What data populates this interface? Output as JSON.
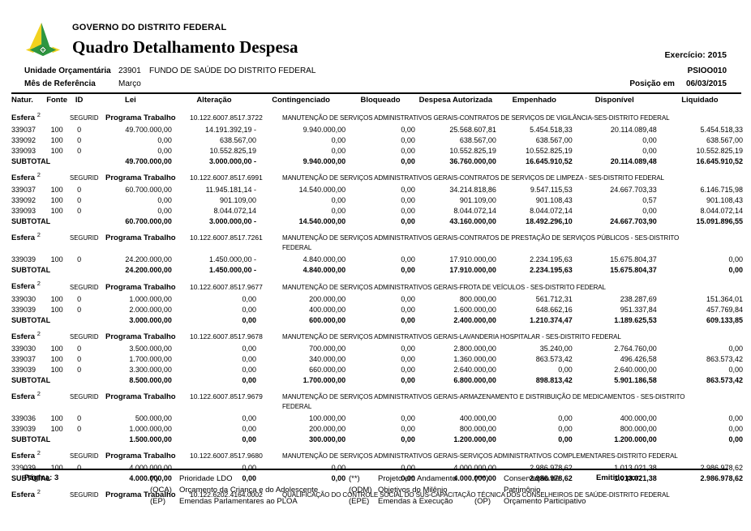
{
  "header": {
    "org": "GOVERNO DO DISTRITO FEDERAL",
    "title": "Quadro Detalhamento Despesa",
    "exercicio": "Exercício: 2015",
    "report_code": "PSIOO010",
    "posicao_label": "Posição em",
    "posicao_date": "06/03/2015",
    "unidade_label": "Unidade Orçamentária",
    "unidade_code": "23901",
    "unidade_name": "FUNDO DE SAÚDE DO DISTRITO FEDERAL",
    "mes_label": "Mês de Referência",
    "mes_value": "Março"
  },
  "table": {
    "columns": [
      "Natur.",
      "Fonte",
      "ID",
      "Lei",
      "Alteração",
      "Contingenciado",
      "Bloqueado",
      "Despesa Autorizada",
      "Empenhado",
      "Disponível",
      "Liquidado"
    ],
    "esfera": {
      "label": "Esfera",
      "value": "2",
      "regime": "SEGURID",
      "pt_label": "Programa Trabalho"
    },
    "subtotal_label": "SUBTOTAL",
    "sections": [
      {
        "pt_code": "10.122.6007.8517.3722",
        "desc": "MANUTENÇÃO DE SERVIÇOS ADMINISTRATIVOS GERAIS-CONTRATOS DE SERVIÇOS DE VIGILÂNCIA-SES-DISTRITO FEDERAL",
        "rows": [
          [
            "339037",
            "100",
            "0",
            "49.700.000,00",
            "14.191.392,19 -",
            "9.940.000,00",
            "0,00",
            "25.568.607,81",
            "5.454.518,33",
            "20.114.089,48",
            "5.454.518,33"
          ],
          [
            "339092",
            "100",
            "0",
            "0,00",
            "638.567,00",
            "0,00",
            "0,00",
            "638.567,00",
            "638.567,00",
            "0,00",
            "638.567,00"
          ],
          [
            "339093",
            "100",
            "0",
            "0,00",
            "10.552.825,19",
            "0,00",
            "0,00",
            "10.552.825,19",
            "10.552.825,19",
            "0,00",
            "10.552.825,19"
          ]
        ],
        "subtotal": [
          "49.700.000,00",
          "3.000.000,00 -",
          "9.940.000,00",
          "0,00",
          "36.760.000,00",
          "16.645.910,52",
          "20.114.089,48",
          "16.645.910,52"
        ]
      },
      {
        "pt_code": "10.122.6007.8517.6991",
        "desc": "MANUTENÇÃO DE SERVIÇOS ADMINISTRATIVOS GERAIS-CONTRATOS DE SERVIÇOS DE LIMPEZA - SES-DISTRITO FEDERAL",
        "rows": [
          [
            "339037",
            "100",
            "0",
            "60.700.000,00",
            "11.945.181,14 -",
            "14.540.000,00",
            "0,00",
            "34.214.818,86",
            "9.547.115,53",
            "24.667.703,33",
            "6.146.715,98"
          ],
          [
            "339092",
            "100",
            "0",
            "0,00",
            "901.109,00",
            "0,00",
            "0,00",
            "901.109,00",
            "901.108,43",
            "0,57",
            "901.108,43"
          ],
          [
            "339093",
            "100",
            "0",
            "0,00",
            "8.044.072,14",
            "0,00",
            "0,00",
            "8.044.072,14",
            "8.044.072,14",
            "0,00",
            "8.044.072,14"
          ]
        ],
        "subtotal": [
          "60.700.000,00",
          "3.000.000,00 -",
          "14.540.000,00",
          "0,00",
          "43.160.000,00",
          "18.492.296,10",
          "24.667.703,90",
          "15.091.896,55"
        ]
      },
      {
        "pt_code": "10.122.6007.8517.7261",
        "desc": "MANUTENÇÃO DE SERVIÇOS ADMINISTRATIVOS GERAIS-CONTRATOS DE PRESTAÇÃO DE SERVIÇOS PÚBLICOS - SES-DISTRITO",
        "desc2": "FEDERAL",
        "rows": [
          [
            "339039",
            "100",
            "0",
            "24.200.000,00",
            "1.450.000,00 -",
            "4.840.000,00",
            "0,00",
            "17.910.000,00",
            "2.234.195,63",
            "15.675.804,37",
            "0,00"
          ]
        ],
        "subtotal": [
          "24.200.000,00",
          "1.450.000,00 -",
          "4.840.000,00",
          "0,00",
          "17.910.000,00",
          "2.234.195,63",
          "15.675.804,37",
          "0,00"
        ]
      },
      {
        "pt_code": "10.122.6007.8517.9677",
        "desc": "MANUTENÇÃO DE SERVIÇOS ADMINISTRATIVOS GERAIS-FROTA DE VEÍCULOS - SES-DISTRITO FEDERAL",
        "rows": [
          [
            "339030",
            "100",
            "0",
            "1.000.000,00",
            "0,00",
            "200.000,00",
            "0,00",
            "800.000,00",
            "561.712,31",
            "238.287,69",
            "151.364,01"
          ],
          [
            "339039",
            "100",
            "0",
            "2.000.000,00",
            "0,00",
            "400.000,00",
            "0,00",
            "1.600.000,00",
            "648.662,16",
            "951.337,84",
            "457.769,84"
          ]
        ],
        "subtotal": [
          "3.000.000,00",
          "0,00",
          "600.000,00",
          "0,00",
          "2.400.000,00",
          "1.210.374,47",
          "1.189.625,53",
          "609.133,85"
        ]
      },
      {
        "pt_code": "10.122.6007.8517.9678",
        "desc": "MANUTENÇÃO DE SERVIÇOS ADMINISTRATIVOS GERAIS-LAVANDERIA HOSPITALAR - SES-DISTRITO FEDERAL",
        "rows": [
          [
            "339030",
            "100",
            "0",
            "3.500.000,00",
            "0,00",
            "700.000,00",
            "0,00",
            "2.800.000,00",
            "35.240,00",
            "2.764.760,00",
            "0,00"
          ],
          [
            "339037",
            "100",
            "0",
            "1.700.000,00",
            "0,00",
            "340.000,00",
            "0,00",
            "1.360.000,00",
            "863.573,42",
            "496.426,58",
            "863.573,42"
          ],
          [
            "339039",
            "100",
            "0",
            "3.300.000,00",
            "0,00",
            "660.000,00",
            "0,00",
            "2.640.000,00",
            "0,00",
            "2.640.000,00",
            "0,00"
          ]
        ],
        "subtotal": [
          "8.500.000,00",
          "0,00",
          "1.700.000,00",
          "0,00",
          "6.800.000,00",
          "898.813,42",
          "5.901.186,58",
          "863.573,42"
        ]
      },
      {
        "pt_code": "10.122.6007.8517.9679",
        "desc": "MANUTENÇÃO DE SERVIÇOS ADMINISTRATIVOS GERAIS-ARMAZENAMENTO E DISTRIBUIÇÃO DE MEDICAMENTOS - SES-DISTRITO",
        "desc2": "FEDERAL",
        "rows": [
          [
            "339036",
            "100",
            "0",
            "500.000,00",
            "0,00",
            "100.000,00",
            "0,00",
            "400.000,00",
            "0,00",
            "400.000,00",
            "0,00"
          ],
          [
            "339039",
            "100",
            "0",
            "1.000.000,00",
            "0,00",
            "200.000,00",
            "0,00",
            "800.000,00",
            "0,00",
            "800.000,00",
            "0,00"
          ]
        ],
        "subtotal": [
          "1.500.000,00",
          "0,00",
          "300.000,00",
          "0,00",
          "1.200.000,00",
          "0,00",
          "1.200.000,00",
          "0,00"
        ]
      },
      {
        "pt_code": "10.122.6007.8517.9680",
        "desc": "MANUTENÇÃO DE SERVIÇOS ADMINISTRATIVOS GERAIS-SERVIÇOS ADMINISTRATIVOS COMPLEMENTARES-DISTRITO FEDERAL",
        "rows": [
          [
            "339039",
            "100",
            "0",
            "4.000.000,00",
            "0,00",
            "0,00",
            "0,00",
            "4.000.000,00",
            "2.986.978,62",
            "1.013.021,38",
            "2.986.978,62"
          ]
        ],
        "subtotal": [
          "4.000.000,00",
          "0,00",
          "0,00",
          "0,00",
          "4.000.000,00",
          "2.986.978,62",
          "1.013.021,38",
          "2.986.978,62"
        ]
      },
      {
        "pt_code": "10.122.6202.4164.0002",
        "desc": "QUALIFICAÇÃO DO CONTROLE SOCIAL DO SUS-CAPACITAÇÃO TÉCNICA DOS CONSELHEIROS DE SAÚDE-DISTRITO FEDERAL",
        "rows": [],
        "subtotal": null
      }
    ]
  },
  "footer": {
    "page_label": "Página:",
    "page_number": "3",
    "legend_col1": [
      [
        "(*)",
        "Prioridade LDO"
      ],
      [
        "(OCA)",
        "Orçamento da Criança e do Adolescente"
      ],
      [
        "(EP)",
        "Emendas Parlamentares ao PLOA"
      ]
    ],
    "legend_col2": [
      [
        "(**)",
        "Projeto em Andamento"
      ],
      [
        "(ODM)",
        "Objetivos do Milênio"
      ],
      [
        "(EPE)",
        "Emendas à Execução"
      ]
    ],
    "legend_col3": [
      [
        "(***)",
        "Conservação de Patrimônio"
      ],
      [
        "(OP)",
        "Orçamento Participativo"
      ]
    ],
    "emitido_label": "Emitido por:"
  },
  "icons": {
    "logo": "gdf-crest-icon"
  },
  "colors": {
    "text": "#000000",
    "background": "#ffffff",
    "logo_green": "#2e9640",
    "logo_dark_green": "#1e7a2e",
    "logo_yellow": "#f2d21f"
  }
}
